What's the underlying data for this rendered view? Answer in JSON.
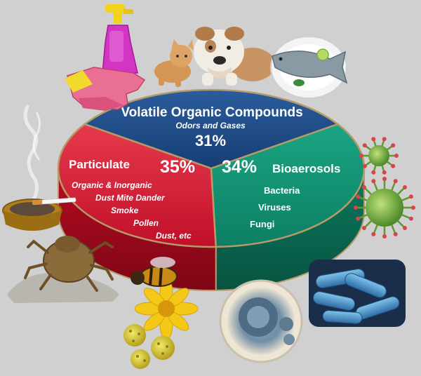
{
  "chart_data": {
    "type": "pie",
    "slices": [
      {
        "id": "voc",
        "title": "Volatile Organic Compounds",
        "subtitle": "Odors and Gases",
        "value": 31,
        "percent_label": "31%",
        "items": [],
        "color": "#1d4a86"
      },
      {
        "id": "particulate",
        "title": "Particulate",
        "subtitle": "",
        "value": 35,
        "percent_label": "35%",
        "items": [
          "Organic & Inorganic",
          "Dust Mite Dander",
          "Smoke",
          "Pollen",
          "Dust, etc"
        ],
        "color": "#d5142f"
      },
      {
        "id": "bioaerosols",
        "title": "Bioaerosols",
        "subtitle": "",
        "value": 34,
        "percent_label": "34%",
        "items": [
          "Bacteria",
          "Viruses",
          "Fungi"
        ],
        "color": "#0f8f6e"
      }
    ],
    "style": "3d-disc",
    "legend": "none"
  },
  "illustrations": [
    "spray-bottle-icon",
    "rubber-gloves-icon",
    "kitten-icon",
    "bulldog-icon",
    "fish-plate-icon",
    "cigarette-ashtray-icon",
    "dust-mite-icon",
    "bee-on-flower-icon",
    "pollen-grain-icon",
    "mold-petri-dish-icon",
    "bacteria-icon",
    "virus-icon"
  ],
  "colors": {
    "background": "#d0d0d0",
    "rim": "#b59a6a",
    "label_text": "#ffffff"
  }
}
